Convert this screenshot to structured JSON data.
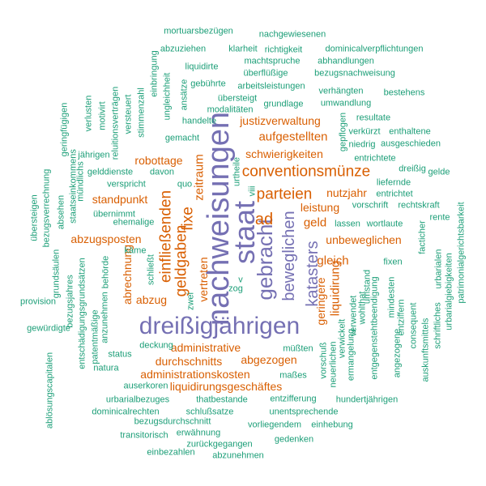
{
  "palette": {
    "purple": "#7570b3",
    "orange": "#d95f02",
    "green": "#1b9e77"
  },
  "words": [
    {
      "text": "dreißigjährigen",
      "color": "purple",
      "weight": 5
    },
    {
      "text": "nachweisungen",
      "color": "purple",
      "weight": 5
    },
    {
      "text": "staat",
      "color": "purple",
      "weight": 5
    },
    {
      "text": "gebracht",
      "color": "purple",
      "weight": 4
    },
    {
      "text": "beweglichen",
      "color": "purple",
      "weight": 3
    },
    {
      "text": "katasters",
      "color": "purple",
      "weight": 3
    },
    {
      "text": "conventionsmünze",
      "color": "orange",
      "weight": 3
    },
    {
      "text": "parteien",
      "color": "orange",
      "weight": 3
    },
    {
      "text": "ad",
      "color": "orange",
      "weight": 3
    },
    {
      "text": "fixe",
      "color": "orange",
      "weight": 3
    },
    {
      "text": "geldgaben",
      "color": "orange",
      "weight": 3
    },
    {
      "text": "einfließenden",
      "color": "orange",
      "weight": 3
    },
    {
      "text": "zeitraum",
      "color": "orange",
      "weight": 2
    },
    {
      "text": "vertreten",
      "color": "orange",
      "weight": 2
    },
    {
      "text": "liquidirung",
      "color": "orange",
      "weight": 2
    },
    {
      "text": "unbeweglichen",
      "color": "orange",
      "weight": 2
    },
    {
      "text": "gleich",
      "color": "orange",
      "weight": 2
    },
    {
      "text": "geld",
      "color": "orange",
      "weight": 2
    },
    {
      "text": "leistung",
      "color": "orange",
      "weight": 2
    },
    {
      "text": "nutzjahr",
      "color": "orange",
      "weight": 2
    },
    {
      "text": "aufgestellten",
      "color": "orange",
      "weight": 2
    },
    {
      "text": "justizverwaltung",
      "color": "orange",
      "weight": 2
    },
    {
      "text": "schwierigkeiten",
      "color": "orange",
      "weight": 2
    },
    {
      "text": "robottage",
      "color": "orange",
      "weight": 2
    },
    {
      "text": "standpunkt",
      "color": "orange",
      "weight": 2
    },
    {
      "text": "abzugsposten",
      "color": "orange",
      "weight": 2
    },
    {
      "text": "abzug",
      "color": "orange",
      "weight": 2
    },
    {
      "text": "abrechnung",
      "color": "orange",
      "weight": 2
    },
    {
      "text": "administrative",
      "color": "orange",
      "weight": 2
    },
    {
      "text": "durchschnitts",
      "color": "orange",
      "weight": 2
    },
    {
      "text": "abgezogen",
      "color": "orange",
      "weight": 2
    },
    {
      "text": "administrationskosten",
      "color": "orange",
      "weight": 2
    },
    {
      "text": "liquidirungsgeschäftes",
      "color": "orange",
      "weight": 2
    },
    {
      "text": "geringere",
      "color": "orange",
      "weight": 2
    },
    {
      "text": "mortuarsbezügen",
      "color": "green",
      "weight": 1
    },
    {
      "text": "nachgewiesenen",
      "color": "green",
      "weight": 1
    },
    {
      "text": "abzuziehen",
      "color": "green",
      "weight": 1
    },
    {
      "text": "klarheit",
      "color": "green",
      "weight": 1
    },
    {
      "text": "richtigkeit",
      "color": "green",
      "weight": 1
    },
    {
      "text": "dominicalverpflichtungen",
      "color": "green",
      "weight": 1
    },
    {
      "text": "liquidirte",
      "color": "green",
      "weight": 1
    },
    {
      "text": "machtspruche",
      "color": "green",
      "weight": 1
    },
    {
      "text": "abhandlungen",
      "color": "green",
      "weight": 1
    },
    {
      "text": "überflüßige",
      "color": "green",
      "weight": 1
    },
    {
      "text": "bezugsnachweisung",
      "color": "green",
      "weight": 1
    },
    {
      "text": "gebührte",
      "color": "green",
      "weight": 1
    },
    {
      "text": "arbeitsleistungen",
      "color": "green",
      "weight": 1
    },
    {
      "text": "verhängten",
      "color": "green",
      "weight": 1
    },
    {
      "text": "bestehens",
      "color": "green",
      "weight": 1
    },
    {
      "text": "übersteigt",
      "color": "green",
      "weight": 1
    },
    {
      "text": "grundlage",
      "color": "green",
      "weight": 1
    },
    {
      "text": "umwandlung",
      "color": "green",
      "weight": 1
    },
    {
      "text": "modalitäten",
      "color": "green",
      "weight": 1
    },
    {
      "text": "handelte",
      "color": "green",
      "weight": 1
    },
    {
      "text": "resultate",
      "color": "green",
      "weight": 1
    },
    {
      "text": "gemacht",
      "color": "green",
      "weight": 1
    },
    {
      "text": "verkürzt",
      "color": "green",
      "weight": 1
    },
    {
      "text": "enthaltene",
      "color": "green",
      "weight": 1
    },
    {
      "text": "niedrig",
      "color": "green",
      "weight": 1
    },
    {
      "text": "ausgeschieden",
      "color": "green",
      "weight": 1
    },
    {
      "text": "entrichtete",
      "color": "green",
      "weight": 1
    },
    {
      "text": "jährigen",
      "color": "green",
      "weight": 1
    },
    {
      "text": "dreißig",
      "color": "green",
      "weight": 1
    },
    {
      "text": "gelde",
      "color": "green",
      "weight": 1
    },
    {
      "text": "gelddienste",
      "color": "green",
      "weight": 1
    },
    {
      "text": "davon",
      "color": "green",
      "weight": 1
    },
    {
      "text": "liefernde",
      "color": "green",
      "weight": 1
    },
    {
      "text": "verspricht",
      "color": "green",
      "weight": 1
    },
    {
      "text": "quo",
      "color": "green",
      "weight": 1
    },
    {
      "text": "entrichtet",
      "color": "green",
      "weight": 1
    },
    {
      "text": "übernimmt",
      "color": "green",
      "weight": 1
    },
    {
      "text": "vorschrift",
      "color": "green",
      "weight": 1
    },
    {
      "text": "rechtskraft",
      "color": "green",
      "weight": 1
    },
    {
      "text": "ehemalige",
      "color": "green",
      "weight": 1
    },
    {
      "text": "lassen",
      "color": "green",
      "weight": 1
    },
    {
      "text": "wortlaute",
      "color": "green",
      "weight": 1
    },
    {
      "text": "rente",
      "color": "green",
      "weight": 1
    },
    {
      "text": "käme",
      "color": "green",
      "weight": 1
    },
    {
      "text": "fixen",
      "color": "green",
      "weight": 1
    },
    {
      "text": "behörde",
      "color": "green",
      "weight": 1
    },
    {
      "text": "provision",
      "color": "green",
      "weight": 1
    },
    {
      "text": "zog",
      "color": "green",
      "weight": 1
    },
    {
      "text": "v",
      "color": "green",
      "weight": 1
    },
    {
      "text": "gewürdigte",
      "color": "green",
      "weight": 1
    },
    {
      "text": "anzunehmen",
      "color": "green",
      "weight": 1
    },
    {
      "text": "status",
      "color": "green",
      "weight": 1
    },
    {
      "text": "deckung",
      "color": "green",
      "weight": 1
    },
    {
      "text": "müßten",
      "color": "green",
      "weight": 1
    },
    {
      "text": "natura",
      "color": "green",
      "weight": 1
    },
    {
      "text": "auserkoren",
      "color": "green",
      "weight": 1
    },
    {
      "text": "maßes",
      "color": "green",
      "weight": 1
    },
    {
      "text": "urbarialbezuges",
      "color": "green",
      "weight": 1
    },
    {
      "text": "thatbestande",
      "color": "green",
      "weight": 1
    },
    {
      "text": "entzifferung",
      "color": "green",
      "weight": 1
    },
    {
      "text": "hundertjährigen",
      "color": "green",
      "weight": 1
    },
    {
      "text": "dominicalrechten",
      "color": "green",
      "weight": 1
    },
    {
      "text": "schlußsatze",
      "color": "green",
      "weight": 1
    },
    {
      "text": "unentsprechende",
      "color": "green",
      "weight": 1
    },
    {
      "text": "bezugsdurchschnitt",
      "color": "green",
      "weight": 1
    },
    {
      "text": "vorliegendem",
      "color": "green",
      "weight": 1
    },
    {
      "text": "einhebung",
      "color": "green",
      "weight": 1
    },
    {
      "text": "transitorisch",
      "color": "green",
      "weight": 1
    },
    {
      "text": "erwähnung",
      "color": "green",
      "weight": 1
    },
    {
      "text": "gedenken",
      "color": "green",
      "weight": 1
    },
    {
      "text": "zurückgegangen",
      "color": "green",
      "weight": 1
    },
    {
      "text": "einbezahlen",
      "color": "green",
      "weight": 1
    },
    {
      "text": "abzunehmen",
      "color": "green",
      "weight": 1
    },
    {
      "text": "übersteigen",
      "color": "green",
      "weight": 1
    },
    {
      "text": "bezugsverrechnung",
      "color": "green",
      "weight": 1
    },
    {
      "text": "grundsäulen",
      "color": "green",
      "weight": 1
    },
    {
      "text": "ablösungscapitalen",
      "color": "green",
      "weight": 1
    },
    {
      "text": "bezugsjahres",
      "color": "green",
      "weight": 1
    },
    {
      "text": "entschädigungsgrundsätzen",
      "color": "green",
      "weight": 1
    },
    {
      "text": "patentmäßige",
      "color": "green",
      "weight": 1
    },
    {
      "text": "absehen",
      "color": "green",
      "weight": 1
    },
    {
      "text": "staatseinkommens",
      "color": "green",
      "weight": 1
    },
    {
      "text": "mündlichs",
      "color": "green",
      "weight": 1
    },
    {
      "text": "geringfügigen",
      "color": "green",
      "weight": 1
    },
    {
      "text": "verlusten",
      "color": "green",
      "weight": 1
    },
    {
      "text": "motivirt",
      "color": "green",
      "weight": 1
    },
    {
      "text": "reluitionsverträgen",
      "color": "green",
      "weight": 1
    },
    {
      "text": "versteuert",
      "color": "green",
      "weight": 1
    },
    {
      "text": "stimmenzahl",
      "color": "green",
      "weight": 1
    },
    {
      "text": "einbringung",
      "color": "green",
      "weight": 1
    },
    {
      "text": "ungleichheit",
      "color": "green",
      "weight": 1
    },
    {
      "text": "ansätze",
      "color": "green",
      "weight": 1
    },
    {
      "text": "schließt",
      "color": "green",
      "weight": 1
    },
    {
      "text": "zwei",
      "color": "green",
      "weight": 1
    },
    {
      "text": "urtheile",
      "color": "green",
      "weight": 1
    },
    {
      "text": "viii",
      "color": "green",
      "weight": 1
    },
    {
      "text": "gepflogen",
      "color": "green",
      "weight": 1
    },
    {
      "text": "facticher",
      "color": "green",
      "weight": 1
    },
    {
      "text": "urbarialen",
      "color": "green",
      "weight": 1
    },
    {
      "text": "patrimonialgerichtsbarkeit",
      "color": "green",
      "weight": 1
    },
    {
      "text": "urbarialgiebigkeiten",
      "color": "green",
      "weight": 1
    },
    {
      "text": "schriftliches",
      "color": "green",
      "weight": 1
    },
    {
      "text": "auskunftsmittels",
      "color": "green",
      "weight": 1
    },
    {
      "text": "consequent",
      "color": "green",
      "weight": 1
    },
    {
      "text": "entziffern",
      "color": "green",
      "weight": 1
    },
    {
      "text": "mindesten",
      "color": "green",
      "weight": 1
    },
    {
      "text": "angezogene",
      "color": "green",
      "weight": 1
    },
    {
      "text": "umstand",
      "color": "green",
      "weight": 1
    },
    {
      "text": "entgegenstehtbeendigung",
      "color": "green",
      "weight": 1
    },
    {
      "text": "wohlthat",
      "color": "green",
      "weight": 1
    },
    {
      "text": "verwendet",
      "color": "green",
      "weight": 1
    },
    {
      "text": "verwickelt",
      "color": "green",
      "weight": 1
    },
    {
      "text": "ermangelung",
      "color": "green",
      "weight": 1
    },
    {
      "text": "neuerlichen",
      "color": "green",
      "weight": 1
    },
    {
      "text": "vorschuß",
      "color": "green",
      "weight": 1
    }
  ]
}
